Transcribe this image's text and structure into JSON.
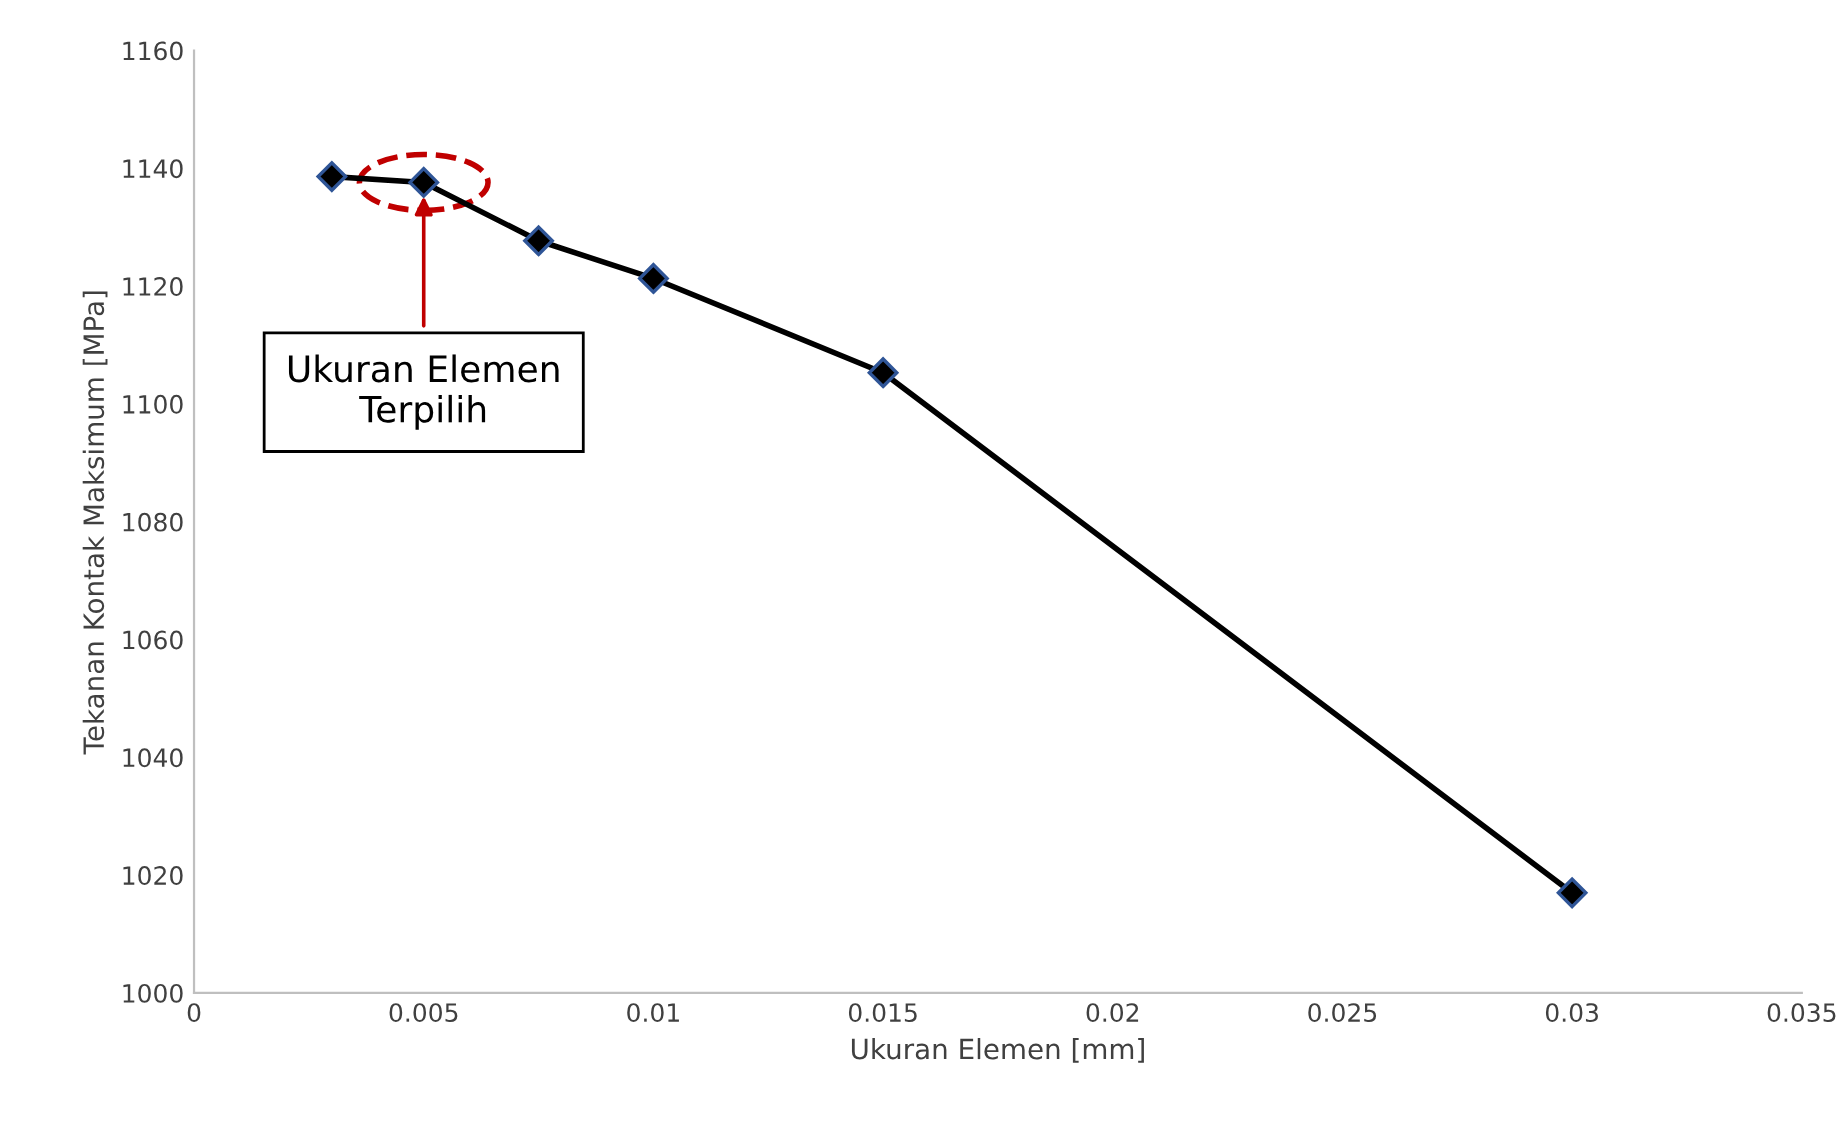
{
  "chart_data": {
    "type": "line",
    "xlabel": "Ukuran Elemen [mm]",
    "ylabel": "Tekanan Kontak Maksimum [MPa]",
    "x": [
      0.003,
      0.005,
      0.0075,
      0.01,
      0.015,
      0.03
    ],
    "series": [
      {
        "color": "#000000",
        "values": [
          1138.6,
          1137.6,
          1127.7,
          1121.3,
          1105.3,
          1017.0
        ]
      }
    ],
    "xlim": [
      0,
      0.035
    ],
    "xticks": [
      0,
      0.005,
      0.01,
      0.015,
      0.02,
      0.025,
      0.03,
      0.035
    ],
    "ylim": [
      1000,
      1160
    ],
    "yticks": [
      1000,
      1020,
      1040,
      1060,
      1080,
      1100,
      1120,
      1140,
      1160
    ],
    "grid": false,
    "marker": "diamond",
    "line_style": "solid",
    "annotations": [
      {
        "text": "Ukuran Elemen\nTerpilih",
        "x": 0.005,
        "y": 1137.6
      }
    ]
  }
}
